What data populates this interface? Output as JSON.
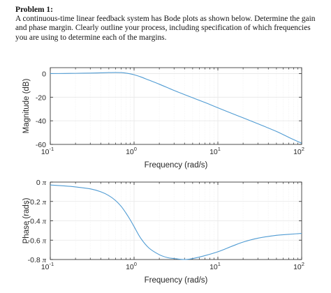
{
  "problem": {
    "title": "Problem 1:",
    "text": "A continuous-time linear feedback system has Bode plots as shown below.  Determine the gain and phase margin.  Clearly outline your process, including specification of which frequencies you are using to determine each of the margins."
  },
  "colors": {
    "curve": "#4f9bd3",
    "axes": "#262626",
    "grid": "#e6e6e6",
    "grid_minor": "#f0f0f0"
  },
  "chart_data": [
    {
      "type": "line",
      "xlabel": "Frequency (rad/s)",
      "ylabel": "Magnitude (dB)",
      "xscale": "log",
      "xlim": [
        0.1,
        100
      ],
      "ylim": [
        -60,
        5
      ],
      "grid": true,
      "x_tick_labels": [
        {
          "base": "10",
          "exp": "-1"
        },
        {
          "base": "10",
          "exp": "0"
        },
        {
          "base": "10",
          "exp": "1"
        },
        {
          "base": "10",
          "exp": "2"
        }
      ],
      "y_ticks": [
        0,
        -20,
        -40,
        -60
      ],
      "y_tick_labels": [
        "0",
        "-20",
        "-40",
        "-60"
      ],
      "series": [
        {
          "x": [
            0.1,
            0.15,
            0.2,
            0.3,
            0.4,
            0.5,
            0.6,
            0.7,
            0.8,
            0.9,
            1.0,
            1.2,
            1.5,
            2,
            3,
            4,
            5,
            7,
            10,
            15,
            20,
            30,
            50,
            70,
            100
          ],
          "y": [
            0,
            0.1,
            0.2,
            0.4,
            0.6,
            0.8,
            0.9,
            0.8,
            0.4,
            -0.2,
            -1.0,
            -2.8,
            -5.5,
            -9,
            -14.3,
            -17.8,
            -20.5,
            -24.5,
            -29,
            -34,
            -37.5,
            -42.5,
            -49,
            -54,
            -59
          ]
        }
      ]
    },
    {
      "type": "line",
      "xlabel": "Frequency (rad/s)",
      "ylabel": "Phase (rads)",
      "xscale": "log",
      "xlim": [
        0.1,
        100
      ],
      "ylim": [
        -0.8,
        0
      ],
      "y_unit": "π",
      "grid": true,
      "x_tick_labels": [
        {
          "base": "10",
          "exp": "-1"
        },
        {
          "base": "10",
          "exp": "0"
        },
        {
          "base": "10",
          "exp": "1"
        },
        {
          "base": "10",
          "exp": "2"
        }
      ],
      "y_ticks": [
        0,
        -0.2,
        -0.4,
        -0.6,
        -0.8
      ],
      "y_tick_labels": [
        "0",
        "-0.2",
        "-0.4",
        "-0.6",
        "-0.8"
      ],
      "series": [
        {
          "x": [
            0.1,
            0.15,
            0.2,
            0.3,
            0.4,
            0.5,
            0.6,
            0.7,
            0.8,
            0.9,
            1.0,
            1.2,
            1.5,
            2,
            2.5,
            3,
            4,
            5,
            7,
            10,
            15,
            20,
            30,
            50,
            70,
            100
          ],
          "y": [
            -0.03,
            -0.04,
            -0.05,
            -0.07,
            -0.1,
            -0.14,
            -0.19,
            -0.25,
            -0.32,
            -0.39,
            -0.46,
            -0.58,
            -0.68,
            -0.75,
            -0.78,
            -0.79,
            -0.8,
            -0.79,
            -0.76,
            -0.72,
            -0.66,
            -0.62,
            -0.58,
            -0.55,
            -0.54,
            -0.53
          ]
        }
      ]
    }
  ]
}
